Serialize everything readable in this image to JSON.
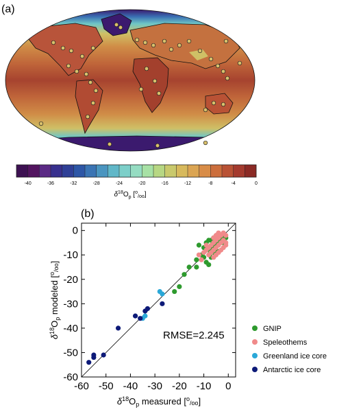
{
  "panel_a": {
    "label": "(a)",
    "colorbar": {
      "ticks": [
        "-40",
        "-36",
        "-32",
        "-28",
        "-24",
        "-20",
        "-16",
        "-12",
        "-8",
        "-4",
        "0"
      ],
      "label_delta": "δ",
      "label_sup": "18",
      "label_main": "O",
      "label_sub": "p",
      "label_unit_open": " [",
      "label_unit_sup": "o",
      "label_unit_sub": "/oo",
      "label_unit_close": "]",
      "colors": [
        "#3d1152",
        "#52145f",
        "#5b2a85",
        "#38308e",
        "#2f3f96",
        "#2d56a6",
        "#3a74b4",
        "#4a95c0",
        "#60b7c8",
        "#7ccfc9",
        "#95dcc2",
        "#a7e1a5",
        "#b7d783",
        "#c9c96c",
        "#d7b95c",
        "#dba553",
        "#d88c47",
        "#cc6e3c",
        "#b95235",
        "#a43a2e",
        "#8b2a25"
      ]
    },
    "map_colors": {
      "tropics": "#a6432f",
      "subtropics": "#c0663a",
      "midlat": "#d08d47",
      "highlat": "#cfc066",
      "subpolar": "#6fc6c6",
      "polar": "#3a6fb3",
      "deep_polar": "#3b1a6e",
      "coast": "#111111"
    }
  },
  "panel_b": {
    "label": "(b)",
    "rmse_text": "RMSE=2.245",
    "legend": [
      {
        "name": "GNIP",
        "color": "#2e9a2e"
      },
      {
        "name": "Speleothems",
        "color": "#f08a8a"
      },
      {
        "name": "Greenland ice core",
        "color": "#2aa8d8"
      },
      {
        "name": "Antarctic ice core",
        "color": "#0d1a78"
      }
    ]
  },
  "chart_data": {
    "type": "scatter",
    "xlabel": "δ18Op measured [o/oo]",
    "ylabel": "δ18Op modeled [o/oo]",
    "xlim": [
      -60,
      3
    ],
    "ylim": [
      -60,
      3
    ],
    "xticks": [
      -60,
      -50,
      -40,
      -30,
      -20,
      -10,
      0
    ],
    "yticks": [
      -60,
      -50,
      -40,
      -30,
      -20,
      -10,
      0
    ],
    "reference_line": "1:1",
    "annotation": "RMSE=2.245",
    "legend_position": "bottom-right",
    "series": [
      {
        "name": "GNIP",
        "color": "#2e9a2e",
        "points": [
          [
            -20,
            -23
          ],
          [
            -18,
            -18
          ],
          [
            -16,
            -15
          ],
          [
            -13,
            -12
          ],
          [
            -11,
            -10
          ],
          [
            -10,
            -11
          ],
          [
            -9,
            -13
          ],
          [
            -8,
            -14
          ],
          [
            -7,
            -11
          ],
          [
            -6,
            -6
          ],
          [
            -5,
            -5
          ],
          [
            -4,
            -4
          ],
          [
            -3,
            -3
          ],
          [
            -2,
            -2
          ],
          [
            -8,
            -8
          ],
          [
            -7,
            -7
          ],
          [
            -10,
            -7
          ],
          [
            -12,
            -6
          ],
          [
            -9,
            -5
          ],
          [
            -6,
            -9
          ],
          [
            -3,
            -5
          ],
          [
            -1,
            -3
          ],
          [
            -5,
            -8
          ],
          [
            -4,
            -6
          ],
          [
            -2,
            -5
          ],
          [
            -7,
            -4
          ],
          [
            -13,
            -15
          ],
          [
            -22,
            -25
          ],
          [
            -8,
            -4
          ],
          [
            -6,
            -3
          ]
        ]
      },
      {
        "name": "Speleothems",
        "color": "#f08a8a",
        "points": [
          [
            -10,
            -9
          ],
          [
            -9,
            -8
          ],
          [
            -8,
            -7
          ],
          [
            -7,
            -6
          ],
          [
            -6,
            -5
          ],
          [
            -5,
            -4
          ],
          [
            -4,
            -3
          ],
          [
            -3,
            -2
          ],
          [
            -2,
            -1
          ],
          [
            -1,
            -2
          ],
          [
            -8,
            -10
          ],
          [
            -7,
            -9
          ],
          [
            -6,
            -8
          ],
          [
            -5,
            -7
          ],
          [
            -4,
            -6
          ],
          [
            -3,
            -5
          ],
          [
            -6,
            -11
          ],
          [
            -5,
            -10
          ],
          [
            -4,
            -9
          ],
          [
            -9,
            -6
          ],
          [
            -2,
            -4
          ],
          [
            -1,
            -5
          ],
          [
            -3,
            -8
          ],
          [
            -12,
            -10
          ],
          [
            -11,
            -12
          ],
          [
            -6,
            -3
          ],
          [
            -5,
            -2
          ],
          [
            -4,
            -1
          ],
          [
            -2,
            -7
          ],
          [
            -1,
            -6
          ]
        ]
      },
      {
        "name": "Greenland ice core",
        "color": "#2aa8d8",
        "points": [
          [
            -35,
            -36
          ],
          [
            -34,
            -35
          ],
          [
            -28,
            -25
          ],
          [
            -27,
            -26
          ]
        ]
      },
      {
        "name": "Antarctic ice core",
        "color": "#0d1a78",
        "points": [
          [
            -57,
            -54
          ],
          [
            -55,
            -52
          ],
          [
            -55,
            -51
          ],
          [
            -51,
            -51
          ],
          [
            -45,
            -40
          ],
          [
            -38,
            -35
          ],
          [
            -36,
            -36
          ],
          [
            -34,
            -33
          ],
          [
            -33,
            -32
          ],
          [
            -27,
            -30
          ]
        ]
      }
    ]
  }
}
